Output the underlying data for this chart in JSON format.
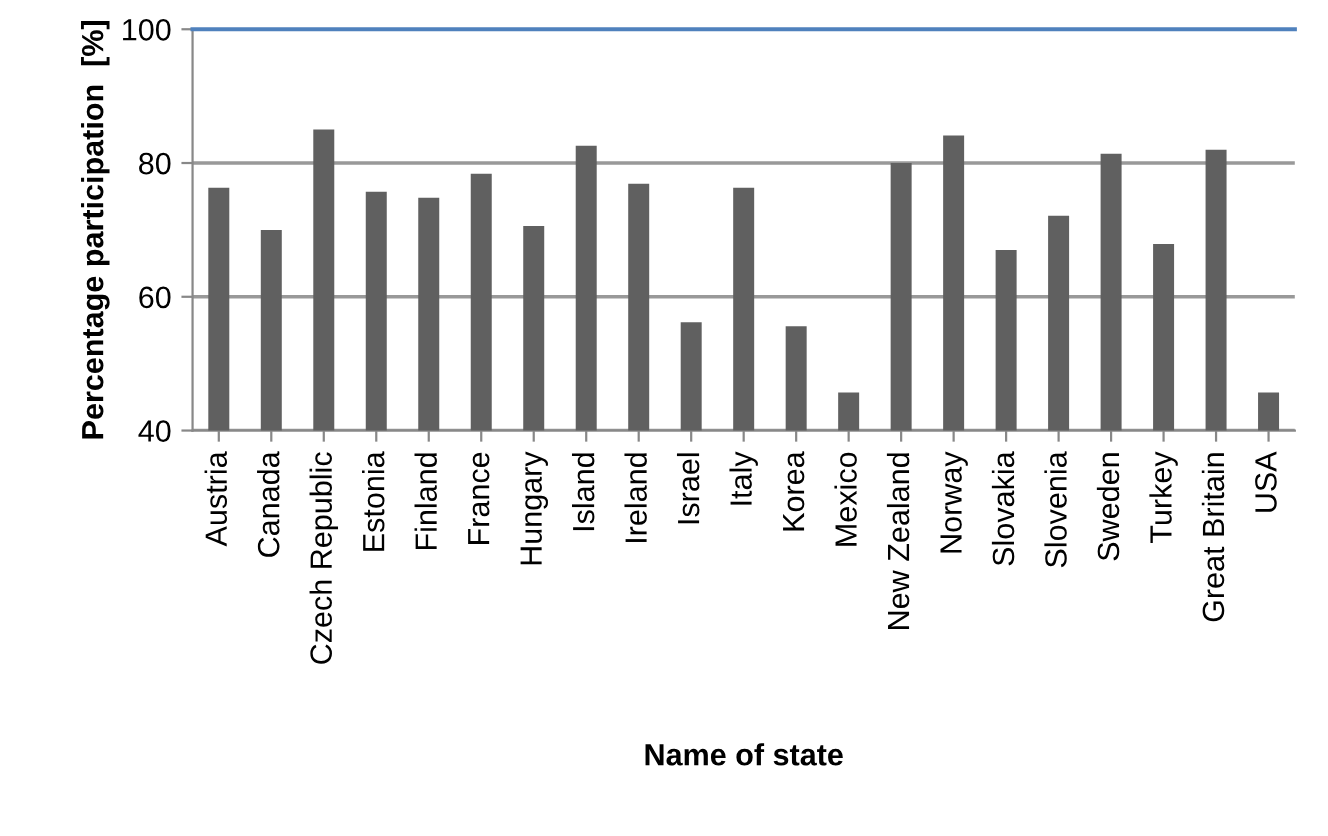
{
  "chart_data": {
    "type": "bar",
    "xlabel": "Name of state",
    "ylabel": "Percentage participation  [%]",
    "categories": [
      "Austria",
      "Canada",
      "Czech Republic",
      "Estonia",
      "Finland",
      "France",
      "Hungary",
      "Island",
      "Ireland",
      "Israel",
      "Italy",
      "Korea",
      "Mexico",
      "New Zealand",
      "Norway",
      "Slovakia",
      "Slovenia",
      "Sweden",
      "Turkey",
      "Great Britain",
      "USA"
    ],
    "values": [
      76.3,
      70.0,
      85.0,
      75.7,
      74.8,
      78.4,
      70.6,
      82.6,
      76.9,
      56.2,
      76.3,
      55.6,
      45.7,
      80.0,
      84.1,
      67.0,
      72.1,
      81.4,
      67.9,
      82.0,
      45.7
    ],
    "color": "#606060",
    "ylim": [
      40,
      100
    ],
    "yticks": [
      40,
      60,
      80,
      100
    ],
    "grid": "y"
  }
}
